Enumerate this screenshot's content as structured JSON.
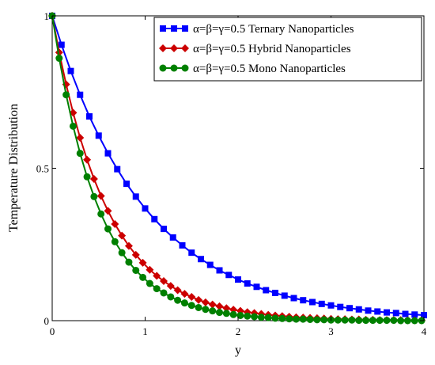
{
  "chart_data": {
    "type": "line",
    "title": "",
    "xlabel": "y",
    "ylabel": "Temperature  Distribution",
    "xlim": [
      0,
      4
    ],
    "ylim": [
      0,
      1
    ],
    "xticks": [
      0,
      1,
      2,
      3,
      4
    ],
    "yticks": [
      0,
      0.5,
      1
    ],
    "xtick_labels": [
      "0",
      "1",
      "2",
      "3",
      "4"
    ],
    "ytick_labels": [
      "0",
      "0.5",
      "1"
    ],
    "grid": false,
    "legend_position": "top-right",
    "series": [
      {
        "name": "α=β=γ=0.5 Ternary Nanoparticles",
        "color": "#0000ff",
        "marker": "square",
        "x": [
          0,
          0.1,
          0.2,
          0.3,
          0.4,
          0.5,
          0.6,
          0.7,
          0.8,
          0.9,
          1.0,
          1.1,
          1.2,
          1.3,
          1.4,
          1.5,
          1.6,
          1.7,
          1.8,
          1.9,
          2.0,
          2.1,
          2.2,
          2.3,
          2.4,
          2.5,
          2.6,
          2.7,
          2.8,
          2.9,
          3.0,
          3.1,
          3.2,
          3.3,
          3.4,
          3.5,
          3.6,
          3.7,
          3.8,
          3.9,
          4.0
        ],
        "y": [
          1.0,
          0.905,
          0.819,
          0.741,
          0.67,
          0.607,
          0.549,
          0.497,
          0.449,
          0.407,
          0.368,
          0.333,
          0.301,
          0.273,
          0.247,
          0.223,
          0.202,
          0.183,
          0.165,
          0.15,
          0.135,
          0.122,
          0.111,
          0.1,
          0.091,
          0.082,
          0.074,
          0.067,
          0.061,
          0.055,
          0.05,
          0.045,
          0.041,
          0.037,
          0.033,
          0.03,
          0.027,
          0.025,
          0.022,
          0.02,
          0.018
        ]
      },
      {
        "name": "α=β=γ=0.5 Hybrid Nanoparticles",
        "color": "#cc0000",
        "marker": "diamond",
        "x": [
          0,
          0.075,
          0.15,
          0.225,
          0.3,
          0.375,
          0.45,
          0.525,
          0.6,
          0.675,
          0.75,
          0.825,
          0.9,
          0.975,
          1.05,
          1.125,
          1.2,
          1.275,
          1.35,
          1.425,
          1.5,
          1.575,
          1.65,
          1.725,
          1.8,
          1.875,
          1.95,
          2.025,
          2.1,
          2.175,
          2.25,
          2.325,
          2.4,
          2.475,
          2.55,
          2.625,
          2.7,
          2.775,
          2.85,
          2.925,
          3.0,
          3.075,
          3.15,
          3.225,
          3.3,
          3.375,
          3.45,
          3.525,
          3.6,
          3.675,
          3.75,
          3.825,
          3.9,
          3.975
        ],
        "y": [
          1.0,
          0.88,
          0.775,
          0.682,
          0.6,
          0.528,
          0.465,
          0.409,
          0.36,
          0.317,
          0.279,
          0.245,
          0.216,
          0.19,
          0.167,
          0.147,
          0.13,
          0.114,
          0.1,
          0.088,
          0.078,
          0.068,
          0.06,
          0.053,
          0.047,
          0.041,
          0.036,
          0.032,
          0.028,
          0.025,
          0.022,
          0.019,
          0.017,
          0.015,
          0.013,
          0.011,
          0.01,
          0.009,
          0.008,
          0.007,
          0.006,
          0.005,
          0.005,
          0.004,
          0.004,
          0.003,
          0.003,
          0.002,
          0.002,
          0.002,
          0.002,
          0.001,
          0.001,
          0.001
        ]
      },
      {
        "name": "α=β=γ=0.5 Mono Nanoparticles",
        "color": "#008000",
        "marker": "circle",
        "x": [
          0,
          0.075,
          0.15,
          0.225,
          0.3,
          0.375,
          0.45,
          0.525,
          0.6,
          0.675,
          0.75,
          0.825,
          0.9,
          0.975,
          1.05,
          1.125,
          1.2,
          1.275,
          1.35,
          1.425,
          1.5,
          1.575,
          1.65,
          1.725,
          1.8,
          1.875,
          1.95,
          2.025,
          2.1,
          2.175,
          2.25,
          2.325,
          2.4,
          2.475,
          2.55,
          2.625,
          2.7,
          2.775,
          2.85,
          2.925,
          3.0,
          3.075,
          3.15,
          3.225,
          3.3,
          3.375,
          3.45,
          3.525,
          3.6,
          3.675,
          3.75,
          3.825,
          3.9,
          3.975
        ],
        "y": [
          1.0,
          0.861,
          0.741,
          0.638,
          0.549,
          0.472,
          0.407,
          0.35,
          0.301,
          0.259,
          0.223,
          0.192,
          0.165,
          0.142,
          0.122,
          0.105,
          0.091,
          0.078,
          0.067,
          0.058,
          0.05,
          0.043,
          0.037,
          0.032,
          0.027,
          0.024,
          0.02,
          0.017,
          0.015,
          0.013,
          0.011,
          0.01,
          0.008,
          0.007,
          0.006,
          0.005,
          0.005,
          0.004,
          0.003,
          0.003,
          0.002,
          0.002,
          0.002,
          0.002,
          0.001,
          0.001,
          0.001,
          0.001,
          0.001,
          0.001,
          0.0,
          0.0,
          0.0,
          0.0
        ]
      }
    ]
  }
}
